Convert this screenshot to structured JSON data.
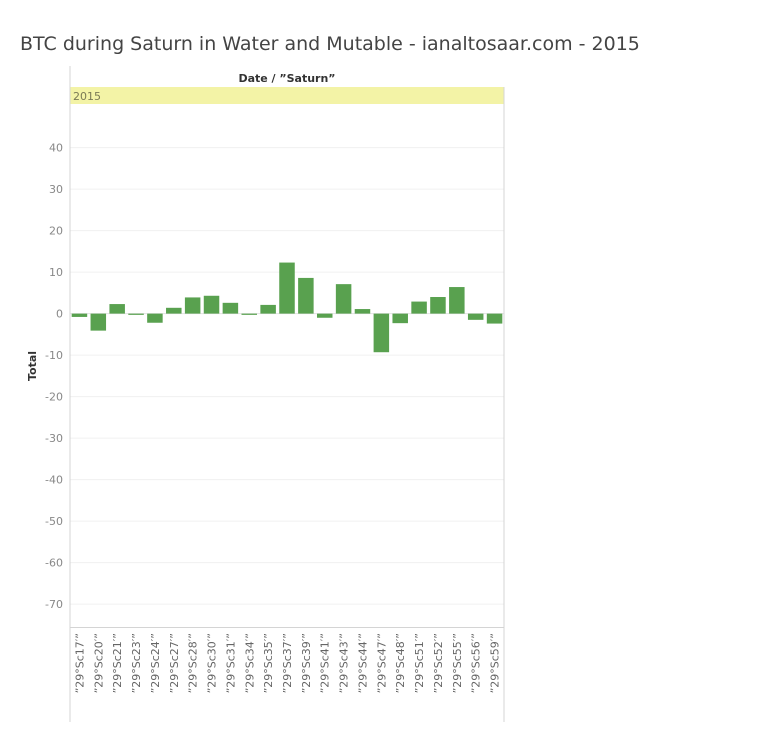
{
  "title": "BTC during Saturn in Water and Mutable - ianaltosaar.com - 2015",
  "chart_data": {
    "type": "bar",
    "header": "Date / ”Saturn”",
    "panel_label": "2015",
    "ylabel": "Total",
    "ylim": [
      -75.5,
      50.5
    ],
    "yticks": [
      40,
      30,
      20,
      10,
      0,
      -10,
      -20,
      -30,
      -40,
      -50,
      -60,
      -70
    ],
    "grid": true,
    "bar_color": "#59a14f",
    "header_fill": "#f3f3a6",
    "categories": [
      "”29°Sc17′”",
      "”29°Sc20′”",
      "”29°Sc21′”",
      "”29°Sc23′”",
      "”29°Sc24′”",
      "”29°Sc27′”",
      "”29°Sc28′”",
      "”29°Sc30′”",
      "”29°Sc31′”",
      "”29°Sc34′”",
      "”29°Sc35′”",
      "”29°Sc37′”",
      "”29°Sc39′”",
      "”29°Sc41′”",
      "”29°Sc43′”",
      "”29°Sc44′”",
      "”29°Sc47′”",
      "”29°Sc48′”",
      "”29°Sc51′”",
      "”29°Sc52′”",
      "”29°Sc55′”",
      "”29°Sc56′”",
      "”29°Sc59′”"
    ],
    "values": [
      -0.8,
      -4.1,
      2.3,
      -0.3,
      -2.2,
      1.4,
      3.9,
      4.3,
      2.6,
      -0.3,
      2.1,
      12.3,
      8.6,
      -1.0,
      7.1,
      1.1,
      -9.3,
      -2.3,
      2.9,
      4.0,
      6.4,
      -1.5,
      -2.4
    ]
  }
}
